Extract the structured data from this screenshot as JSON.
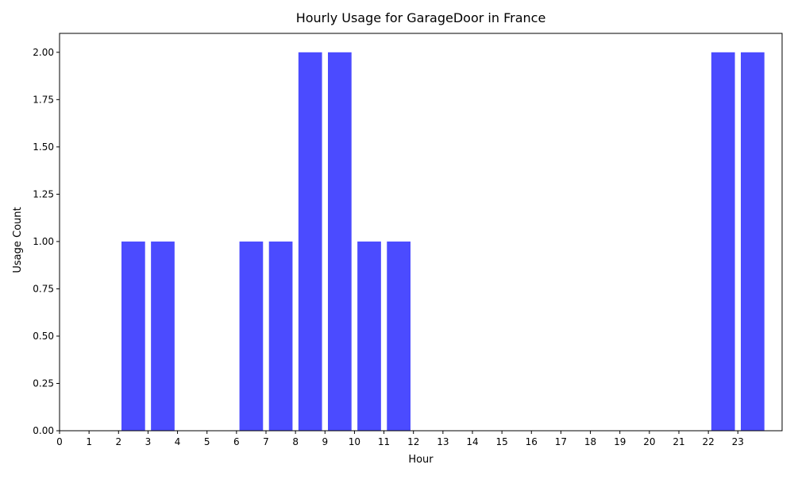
{
  "chart_data": {
    "type": "bar",
    "title": "Hourly Usage for GarageDoor in France",
    "xlabel": "Hour",
    "ylabel": "Usage Count",
    "categories": [
      0,
      1,
      2,
      3,
      4,
      5,
      6,
      7,
      8,
      9,
      10,
      11,
      12,
      13,
      14,
      15,
      16,
      17,
      18,
      19,
      20,
      21,
      22,
      23
    ],
    "bars": [
      {
        "hour": 2,
        "value": 1
      },
      {
        "hour": 3,
        "value": 1
      },
      {
        "hour": 6,
        "value": 1
      },
      {
        "hour": 7,
        "value": 1
      },
      {
        "hour": 8,
        "value": 2
      },
      {
        "hour": 9,
        "value": 2
      },
      {
        "hour": 10,
        "value": 1
      },
      {
        "hour": 11,
        "value": 1
      },
      {
        "hour": 22,
        "value": 2
      },
      {
        "hour": 23,
        "value": 2
      }
    ],
    "ylim": [
      0,
      2.1
    ],
    "xlim": [
      0,
      24.5
    ],
    "yticks": [
      "0.00",
      "0.25",
      "0.50",
      "0.75",
      "1.00",
      "1.25",
      "1.50",
      "1.75",
      "2.00"
    ],
    "xticks": [
      "0",
      "1",
      "2",
      "3",
      "4",
      "5",
      "6",
      "7",
      "8",
      "9",
      "10",
      "11",
      "12",
      "13",
      "14",
      "15",
      "16",
      "17",
      "18",
      "19",
      "20",
      "21",
      "22",
      "23"
    ],
    "bar_color": "#4b4bff",
    "grid": false,
    "legend": "none"
  }
}
